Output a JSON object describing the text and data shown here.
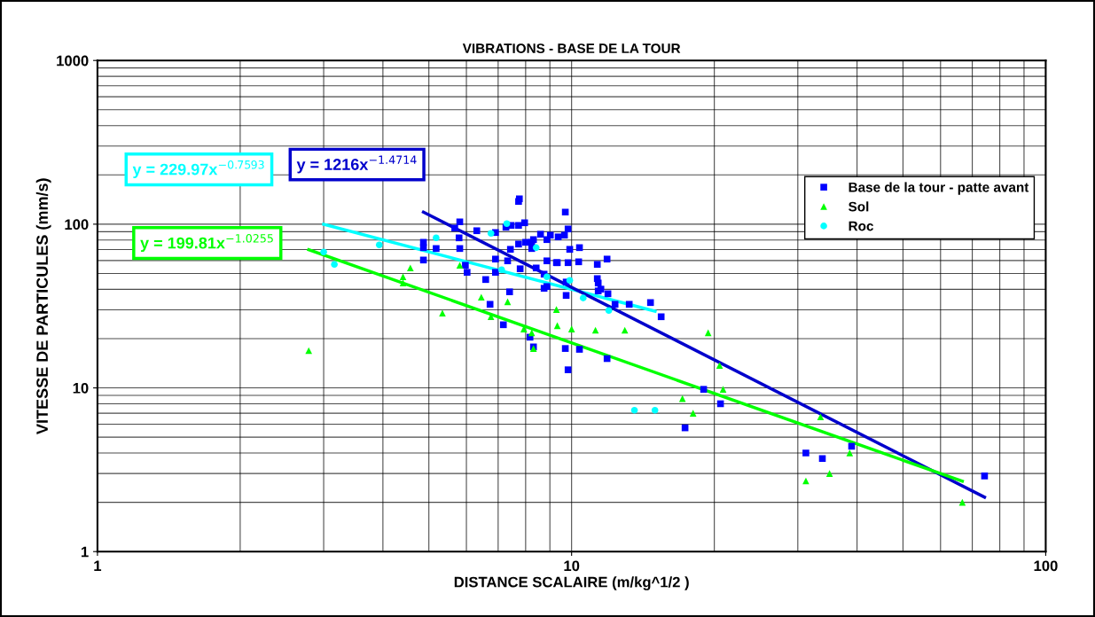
{
  "chart_data": {
    "type": "scatter",
    "title": "VIBRATIONS - BASE DE LA TOUR",
    "xlabel": "DISTANCE SCALAIRE (m/kg^1/2 )",
    "ylabel": "VITESSE DE PARTICULES (mm/s)",
    "log": "xy",
    "xlim": [
      1,
      100
    ],
    "ylim": [
      1,
      1000
    ],
    "xticks": [
      1,
      10,
      100
    ],
    "yticks": [
      1,
      10,
      100,
      1000
    ],
    "grid": true,
    "legend": "right",
    "series": [
      {
        "name": "Base de la tour - patte avant",
        "marker": "square",
        "color": "#0000ff",
        "x": [
          4.87,
          4.87,
          5.18,
          4.87,
          5.81,
          5.67,
          5.79,
          5.81,
          5.97,
          6.02,
          6.31,
          6.59,
          6.91,
          6.91,
          6.91,
          6.73,
          7.18,
          7.33,
          7.4,
          7.27,
          7.46,
          7.73,
          7.76,
          7.73,
          7.96,
          7.73,
          7.43,
          7.79,
          8.0,
          8.24,
          8.31,
          8.24,
          8.42,
          8.6,
          8.87,
          9.02,
          8.87,
          8.75,
          8.75,
          8.87,
          9.29,
          8.17,
          8.31,
          9.7,
          9.83,
          9.37,
          9.66,
          9.91,
          10.39,
          9.33,
          9.83,
          10.35,
          11.33,
          11.88,
          11.33,
          11.38,
          9.74,
          9.74,
          11.53,
          11.38,
          11.93,
          12.35,
          13.23,
          14.67,
          15.45,
          9.7,
          10.39,
          11.88,
          9.83,
          18.99,
          20.61,
          17.35,
          31.2,
          33.8,
          38.96,
          74.3
        ],
        "values": [
          77.5,
          71.9,
          71.0,
          60.4,
          103.3,
          94.7,
          82.5,
          71.0,
          56.1,
          50.8,
          91.2,
          45.9,
          88.9,
          61.2,
          50.8,
          32.4,
          24.3,
          59.7,
          38.6,
          95.8,
          98.3,
          98.3,
          142.9,
          137.6,
          102,
          75.6,
          70.2,
          53.4,
          77.5,
          77.5,
          80.5,
          71.0,
          54.0,
          86.8,
          80.5,
          85.7,
          59.7,
          49.5,
          40.6,
          41.6,
          58.2,
          20.4,
          17.8,
          118.5,
          93.5,
          83.6,
          85.7,
          70.2,
          71.9,
          58.2,
          58.2,
          58.9,
          56.8,
          61.2,
          46.5,
          43.7,
          44.3,
          36.7,
          40.1,
          39.1,
          37.6,
          32.4,
          32.4,
          33.2,
          27.2,
          17.4,
          17.2,
          15.1,
          12.9,
          9.8,
          8.0,
          5.7,
          4.0,
          3.7,
          4.4,
          2.9
        ]
      },
      {
        "name": "Sol",
        "marker": "triangle",
        "color": "#00ff00",
        "x": [
          2.79,
          4.41,
          4.57,
          4.41,
          5.34,
          5.81,
          6.45,
          6.76,
          7.33,
          7.93,
          8.24,
          8.31,
          9.29,
          9.33,
          10.0,
          11.23,
          12.95,
          19.41,
          20.52,
          20.87,
          17.13,
          18.04,
          33.5,
          38.6,
          35.0,
          31.2,
          66.7
        ],
        "values": [
          16.9,
          47.7,
          54.0,
          43.7,
          28.6,
          56.1,
          35.8,
          27.2,
          33.6,
          22.9,
          21.7,
          17.4,
          30.1,
          24.0,
          22.9,
          22.5,
          22.5,
          21.7,
          13.7,
          9.8,
          8.6,
          7.0,
          6.65,
          4.0,
          3.0,
          2.7,
          2.0
        ]
      },
      {
        "name": "Roc",
        "marker": "circle",
        "color": "#00ffff",
        "x": [
          3.0,
          3.16,
          3.93,
          5.18,
          7.3,
          6.76,
          7.12,
          8.42,
          8.87,
          9.91,
          10.58,
          11.98,
          13.57,
          14.99
        ],
        "values": [
          67.6,
          56.8,
          74.7,
          82.5,
          100.8,
          87.9,
          52.7,
          71.9,
          47.7,
          45.4,
          35.4,
          29.7,
          7.3,
          7.3
        ]
      },
      {
        "name": "y = 229.97x$^{−0.7593}$",
        "type": "line",
        "color": "#00ffff",
        "x": [
          3.0,
          15.0
        ],
        "values": [
          99.9,
          29.4
        ]
      },
      {
        "name": "y = 1216x$^{−1.4714}$",
        "type": "line",
        "color": "#0000cc",
        "x": [
          4.87,
          74.3
        ],
        "values": [
          118.5,
          2.15
        ]
      },
      {
        "name": "y = 199.81x$^{−1.0255}$",
        "type": "line",
        "color": "#00ff00",
        "x": [
          2.79,
          66.7
        ],
        "values": [
          69.8,
          2.69
        ]
      }
    ]
  }
}
